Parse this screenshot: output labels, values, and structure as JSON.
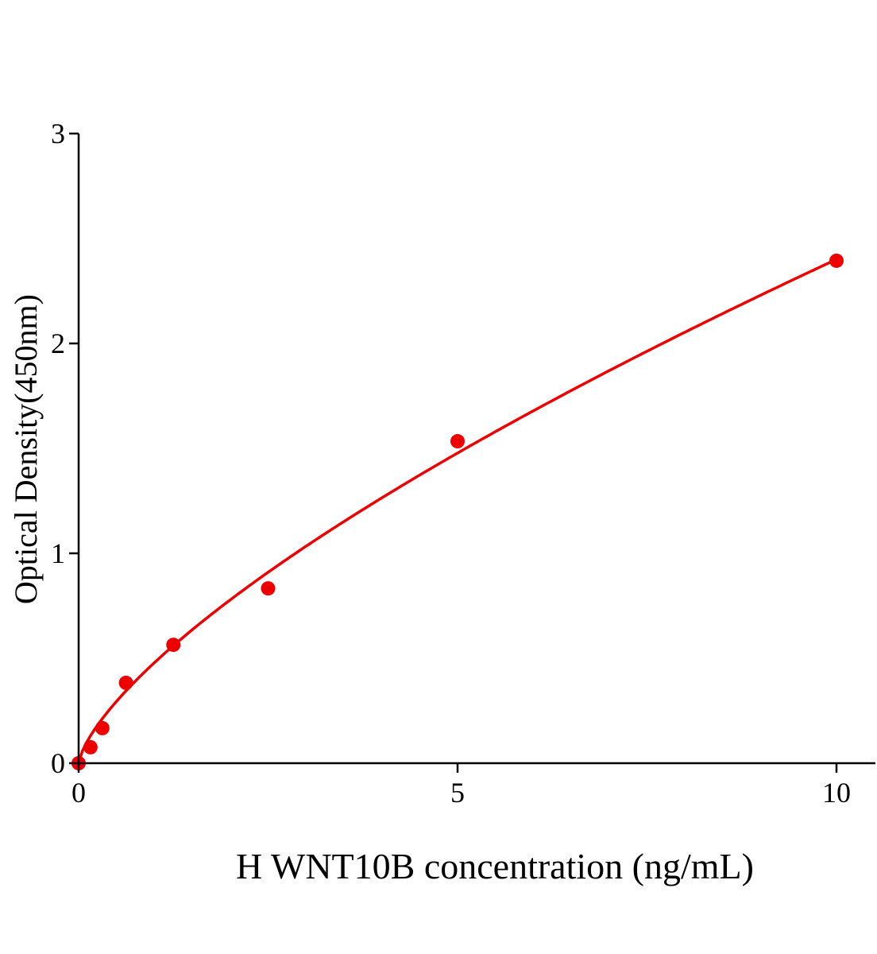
{
  "chart_data": {
    "type": "scatter",
    "title": "",
    "xlabel": "H WNT10B concentration (ng/mL)",
    "ylabel": "Optical Density(450nm)",
    "xlim": [
      0,
      10.5
    ],
    "ylim": [
      0,
      3
    ],
    "xticks": [
      0,
      5,
      10
    ],
    "yticks": [
      0,
      1,
      2,
      3
    ],
    "grid": false,
    "legend": "none",
    "color": "#ee0000",
    "fit_line": "smooth curve through points",
    "series": [
      {
        "x": [
          0,
          0.156,
          0.3125,
          0.625,
          1.25,
          2.5,
          5,
          10
        ],
        "y": [
          0.0,
          0.076,
          0.167,
          0.383,
          0.564,
          0.833,
          1.534,
          2.394
        ]
      }
    ]
  }
}
